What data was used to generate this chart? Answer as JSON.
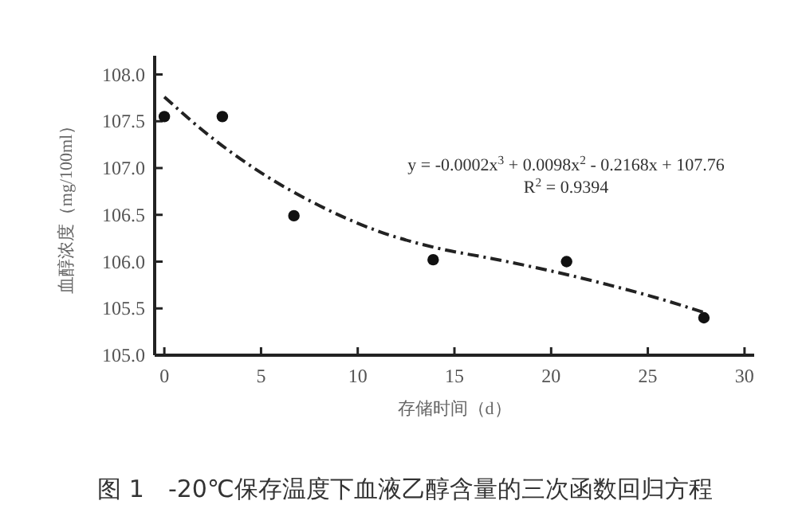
{
  "chart_data": {
    "type": "scatter",
    "title": "图 1　-20℃保存温度下血液乙醇含量的三次函数回归方程",
    "xlabel": "存储时间（d）",
    "ylabel": "血醇浓度（mg/100ml）",
    "xlim": [
      -0.5,
      30.5
    ],
    "xticks": [
      0,
      5,
      10,
      15,
      20,
      25,
      30
    ],
    "ylim": [
      105,
      108.2
    ],
    "yticks": [
      {
        "value": 105,
        "label": "105.0"
      },
      {
        "value": 105.5,
        "label": "105.5"
      },
      {
        "value": 106,
        "label": "106.0"
      },
      {
        "value": 106.5,
        "label": "106.5"
      },
      {
        "value": 107,
        "label": "107.0"
      },
      {
        "value": 107.5,
        "label": "107.5"
      },
      {
        "value": 108,
        "label": "108.0"
      }
    ],
    "grid": false,
    "series": [
      {
        "color": "#111111",
        "marker": "circle",
        "x": [
          0,
          3,
          6.7,
          13.9,
          20.8,
          27.9
        ],
        "values": [
          107.55,
          107.55,
          106.49,
          106.02,
          106.0,
          105.4
        ]
      },
      {
        "type": "line",
        "color": "#222222",
        "line_style": "dashdot",
        "x": [
          0,
          2,
          5,
          8,
          11,
          14,
          17,
          20,
          23,
          26,
          28
        ],
        "values": [
          107.76,
          107.4,
          106.95,
          106.6,
          106.33,
          106.15,
          106.03,
          105.9,
          105.75,
          105.58,
          105.45
        ]
      }
    ],
    "annotations": [
      "y = -0.0002x$^{3}$ + 0.0098x$^{2}$ - 0.2168x + 107.76",
      "R$^{2}$ = 0.9394"
    ]
  }
}
